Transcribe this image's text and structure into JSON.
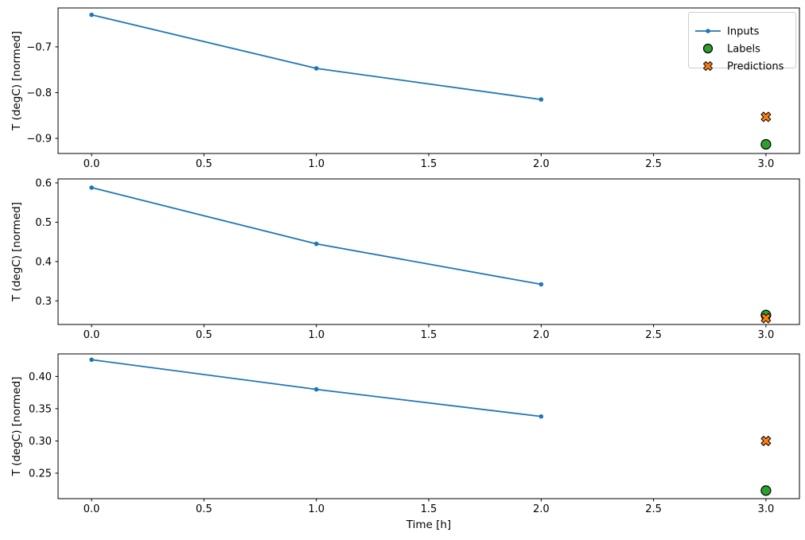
{
  "figure": {
    "background": "#ffffff",
    "xlabel": "Time [h]",
    "ylabel": "T (degC) [normed]"
  },
  "colors": {
    "inputs": "#1f77b4",
    "labels": "#2ca02c",
    "predictions": "#ff7f0e",
    "marker_edge": "#000000",
    "spine": "#000000",
    "tick_text": "#000000",
    "legend_border": "#cccccc",
    "legend_background": "#ffffff"
  },
  "legend": {
    "position": "upper right",
    "items": [
      {
        "label": "Inputs",
        "marker": "line-dot",
        "color_key": "inputs"
      },
      {
        "label": "Labels",
        "marker": "circle",
        "color_key": "labels"
      },
      {
        "label": "Predictions",
        "marker": "X",
        "color_key": "predictions"
      }
    ]
  },
  "chart_data": [
    {
      "type": "line",
      "panel": "top",
      "ylabel": "T (degC) [normed]",
      "xlabel": "",
      "xlim": [
        -0.149,
        3.149
      ],
      "ylim": [
        -0.933,
        -0.615
      ],
      "xticks": [
        0.0,
        0.5,
        1.0,
        1.5,
        2.0,
        2.5,
        3.0
      ],
      "xtick_labels": [
        "0.0",
        "0.5",
        "1.0",
        "1.5",
        "2.0",
        "2.5",
        "3.0"
      ],
      "yticks": [
        -0.7,
        -0.8,
        -0.9
      ],
      "ytick_labels": [
        "−0.7",
        "−0.8",
        "−0.9"
      ],
      "grid": false,
      "show_legend": true,
      "series": [
        {
          "name": "Inputs",
          "kind": "line",
          "marker": "dot",
          "color_key": "inputs",
          "x": [
            0,
            1,
            2
          ],
          "y": [
            -0.63,
            -0.747,
            -0.815
          ]
        },
        {
          "name": "Labels",
          "kind": "scatter",
          "marker": "circle",
          "color_key": "labels",
          "x": [
            3
          ],
          "y": [
            -0.913
          ]
        },
        {
          "name": "Predictions",
          "kind": "scatter",
          "marker": "X",
          "color_key": "predictions",
          "x": [
            3
          ],
          "y": [
            -0.853
          ]
        }
      ]
    },
    {
      "type": "line",
      "panel": "middle",
      "ylabel": "T (degC) [normed]",
      "xlabel": "",
      "xlim": [
        -0.149,
        3.149
      ],
      "ylim": [
        0.24,
        0.61
      ],
      "xticks": [
        0.0,
        0.5,
        1.0,
        1.5,
        2.0,
        2.5,
        3.0
      ],
      "xtick_labels": [
        "0.0",
        "0.5",
        "1.0",
        "1.5",
        "2.0",
        "2.5",
        "3.0"
      ],
      "yticks": [
        0.3,
        0.4,
        0.5,
        0.6
      ],
      "ytick_labels": [
        "0.3",
        "0.4",
        "0.5",
        "0.6"
      ],
      "grid": false,
      "show_legend": false,
      "series": [
        {
          "name": "Inputs",
          "kind": "line",
          "marker": "dot",
          "color_key": "inputs",
          "x": [
            0,
            1,
            2
          ],
          "y": [
            0.588,
            0.445,
            0.342
          ]
        },
        {
          "name": "Labels",
          "kind": "scatter",
          "marker": "circle",
          "color_key": "labels",
          "x": [
            3
          ],
          "y": [
            0.264
          ]
        },
        {
          "name": "Predictions",
          "kind": "scatter",
          "marker": "X",
          "color_key": "predictions",
          "x": [
            3
          ],
          "y": [
            0.256
          ]
        }
      ]
    },
    {
      "type": "line",
      "panel": "bottom",
      "ylabel": "T (degC) [normed]",
      "xlabel": "Time [h]",
      "xlim": [
        -0.149,
        3.149
      ],
      "ylim": [
        0.2105,
        0.435
      ],
      "xticks": [
        0.0,
        0.5,
        1.0,
        1.5,
        2.0,
        2.5,
        3.0
      ],
      "xtick_labels": [
        "0.0",
        "0.5",
        "1.0",
        "1.5",
        "2.0",
        "2.5",
        "3.0"
      ],
      "yticks": [
        0.25,
        0.3,
        0.35,
        0.4
      ],
      "ytick_labels": [
        "0.25",
        "0.30",
        "0.35",
        "0.40"
      ],
      "grid": false,
      "show_legend": false,
      "series": [
        {
          "name": "Inputs",
          "kind": "line",
          "marker": "dot",
          "color_key": "inputs",
          "x": [
            0,
            1,
            2
          ],
          "y": [
            0.426,
            0.38,
            0.338
          ]
        },
        {
          "name": "Labels",
          "kind": "scatter",
          "marker": "circle",
          "color_key": "labels",
          "x": [
            3
          ],
          "y": [
            0.223
          ]
        },
        {
          "name": "Predictions",
          "kind": "scatter",
          "marker": "X",
          "color_key": "predictions",
          "x": [
            3
          ],
          "y": [
            0.3
          ]
        }
      ]
    }
  ]
}
